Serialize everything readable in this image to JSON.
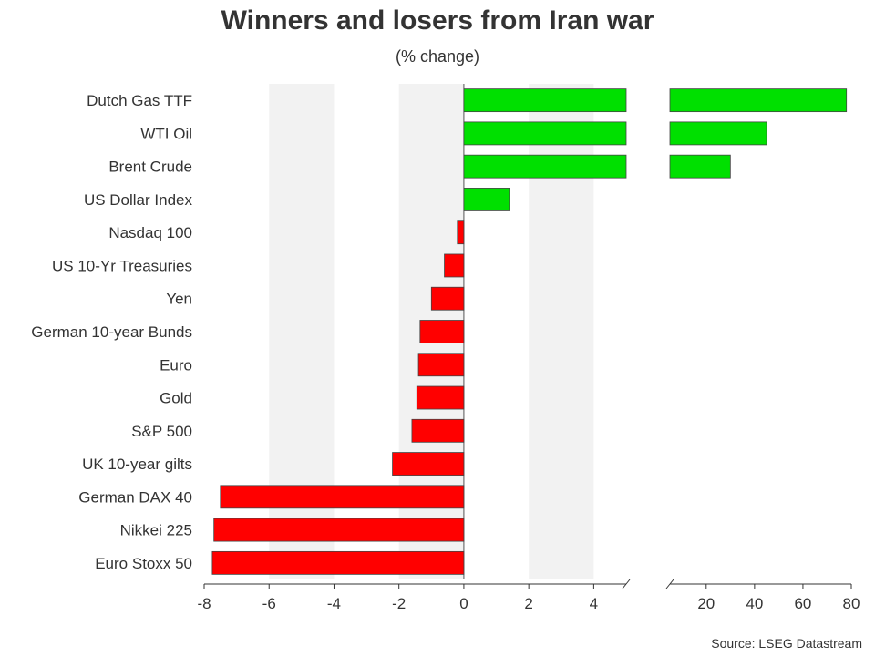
{
  "chart_data": {
    "type": "bar",
    "orientation": "horizontal",
    "title": "Winners and losers from Iran war",
    "subtitle": "(% change)",
    "source": "Source: LSEG Datastream",
    "categories": [
      "Dutch Gas TTF",
      "WTI Oil",
      "Brent Crude",
      "US Dollar Index",
      "Nasdaq 100",
      "US 10-Yr Treasuries",
      "Yen",
      "German 10-year Bunds",
      "Euro",
      "Gold",
      "S&P 500",
      "UK 10-year gilts",
      "German DAX 40",
      "Nikkei 225",
      "Euro Stoxx 50"
    ],
    "values": [
      78,
      45,
      30,
      1.4,
      -0.2,
      -0.6,
      -1.0,
      -1.35,
      -1.4,
      -1.45,
      -1.6,
      -2.2,
      -7.5,
      -7.7,
      -7.75
    ],
    "axis_break": true,
    "left_axis": {
      "xlim": [
        -8,
        5
      ],
      "ticks": [
        -8,
        -6,
        -4,
        -2,
        0,
        2,
        4
      ]
    },
    "right_axis": {
      "xlim": [
        5,
        80
      ],
      "ticks": [
        20,
        40,
        60,
        80
      ]
    },
    "shaded_bands": [
      [
        -6,
        -4
      ],
      [
        -2,
        0
      ],
      [
        2,
        4
      ]
    ],
    "colors": {
      "positive": "#00e000",
      "negative": "#ff0000",
      "band": "#f2f2f2",
      "axis": "#333333"
    }
  }
}
